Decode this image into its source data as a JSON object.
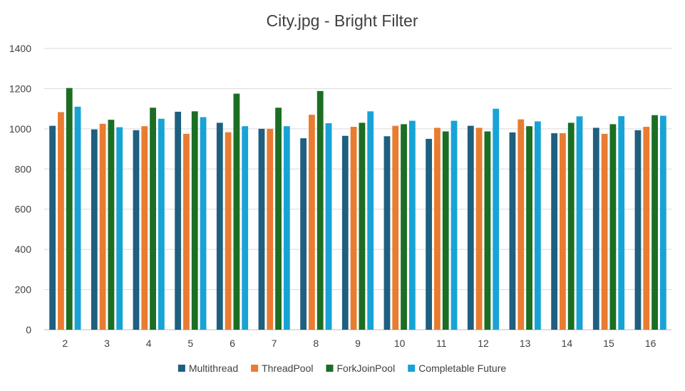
{
  "chart_data": {
    "type": "bar",
    "title": "City.jpg - Bright Filter",
    "xlabel": "",
    "ylabel": "",
    "categories": [
      "2",
      "3",
      "4",
      "5",
      "6",
      "7",
      "8",
      "9",
      "10",
      "11",
      "12",
      "13",
      "14",
      "15",
      "16"
    ],
    "y_ticks": [
      "0",
      "200",
      "400",
      "600",
      "800",
      "1000",
      "1200",
      "1400"
    ],
    "ylim": [
      0,
      1400
    ],
    "grid": true,
    "legend_position": "bottom",
    "series": [
      {
        "name": "Multithread",
        "color": "#1f5f80",
        "values": [
          1015,
          997,
          993,
          1085,
          1030,
          1000,
          953,
          965,
          963,
          950,
          1015,
          982,
          978,
          1005,
          993
        ]
      },
      {
        "name": "ThreadPool",
        "color": "#e97c30",
        "values": [
          1083,
          1025,
          1013,
          975,
          983,
          1000,
          1070,
          1010,
          1015,
          1005,
          1005,
          1047,
          978,
          975,
          1010
        ]
      },
      {
        "name": "ForkJoinPool",
        "color": "#1b6e23",
        "values": [
          1203,
          1045,
          1105,
          1087,
          1175,
          1105,
          1188,
          1030,
          1023,
          987,
          987,
          1013,
          1030,
          1023,
          1068
        ]
      },
      {
        "name": "Completable Future",
        "color": "#18a3d6",
        "values": [
          1110,
          1008,
          1050,
          1058,
          1013,
          1013,
          1028,
          1087,
          1040,
          1040,
          1100,
          1037,
          1062,
          1063,
          1065
        ]
      }
    ]
  }
}
